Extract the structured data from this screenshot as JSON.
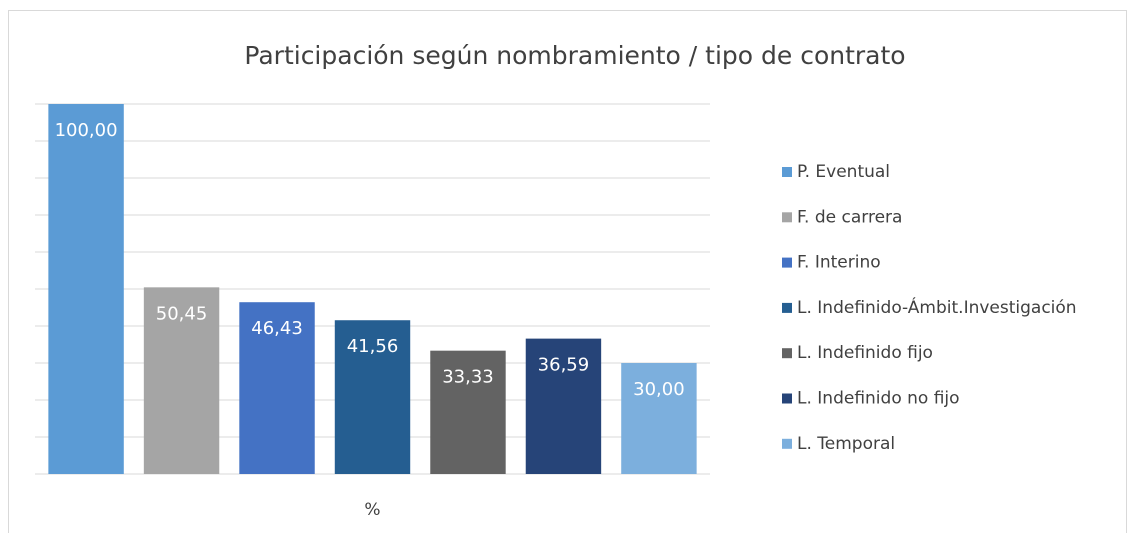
{
  "chart_data": {
    "type": "bar",
    "title": "Participación según nombramiento / tipo de contrato",
    "categories": [
      "%"
    ],
    "series": [
      {
        "name": "P. Eventual",
        "color": "#5b9bd5",
        "values": [
          100.0
        ],
        "value_labels": [
          "100,00"
        ]
      },
      {
        "name": "F. de carrera",
        "color": "#a5a5a5",
        "values": [
          50.45
        ],
        "value_labels": [
          "50,45"
        ]
      },
      {
        "name": "F. Interino",
        "color": "#4472c4",
        "values": [
          46.43
        ],
        "value_labels": [
          "46,43"
        ]
      },
      {
        "name": "L. Indefinido-Ámbit.Investigación",
        "color": "#255e91",
        "values": [
          41.56
        ],
        "value_labels": [
          "41,56"
        ]
      },
      {
        "name": "L. Indefinido fijo",
        "color": "#636363",
        "values": [
          33.33
        ],
        "value_labels": [
          "33,33"
        ]
      },
      {
        "name": "L. Indefinido no fijo",
        "color": "#264478",
        "values": [
          36.59
        ],
        "value_labels": [
          "36,59"
        ]
      },
      {
        "name": "L. Temporal",
        "color": "#7cafdd",
        "values": [
          30.0
        ],
        "value_labels": [
          "30,00"
        ]
      }
    ],
    "ylim": [
      0,
      100
    ],
    "yticks": [
      0,
      10,
      20,
      30,
      40,
      50,
      60,
      70,
      80,
      90,
      100
    ],
    "grid": true,
    "legend": "right"
  }
}
